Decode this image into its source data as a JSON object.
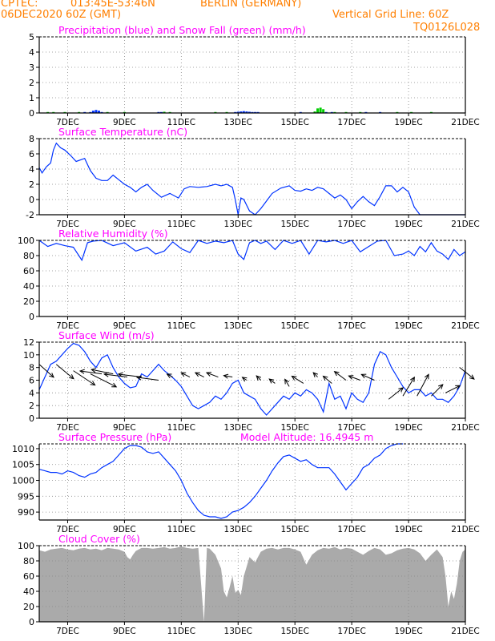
{
  "header": {
    "source": "CPTEC:",
    "coords": "013:45E-53:46N",
    "location": "BERLIN (GERMANY)",
    "run": "06DEC2020 60Z (GMT)",
    "grid_note": "Vertical Grid Line: 60Z",
    "code": "TQ0126L028"
  },
  "colors": {
    "title": "#ff00ff",
    "header": "#ff7f00",
    "line": "#0033ff",
    "snow": "#00cc00",
    "cloud": "#aaaaaa",
    "wind": "#000000"
  },
  "x_ticks": [
    "7DEC",
    "9DEC",
    "11DEC",
    "13DEC",
    "15DEC",
    "17DEC",
    "19DEC",
    "21DEC"
  ],
  "x_range": [
    0,
    15.0
  ],
  "chart_data": [
    {
      "type": "bar",
      "title": "Precipitation (blue) and Snow Fall (green) (mm/h)",
      "ylim": [
        0,
        5
      ],
      "yticks": [
        0,
        1,
        2,
        3,
        4,
        5
      ],
      "series": [
        {
          "name": "Precipitation",
          "t": [
            1.6,
            1.8,
            1.9,
            2.0,
            2.1,
            2.2,
            4.2,
            4.3,
            6.9,
            7.0,
            7.1,
            7.2,
            7.3,
            7.4,
            7.5,
            7.6,
            7.7,
            9.2,
            10.1,
            10.3,
            11.5,
            12.0
          ],
          "values": [
            0.02,
            0.05,
            0.15,
            0.2,
            0.15,
            0.05,
            0.03,
            0.02,
            0.05,
            0.08,
            0.1,
            0.12,
            0.1,
            0.08,
            0.05,
            0.04,
            0.03,
            0.03,
            0.02,
            0.02,
            0.03,
            0.02
          ]
        },
        {
          "name": "Snow Fall",
          "t": [
            0.3,
            0.5,
            0.9,
            1.4,
            2.4,
            3.0,
            4.4,
            4.6,
            6.2,
            6.6,
            9.7,
            9.8,
            9.9,
            10.0,
            10.4,
            10.8,
            11.3,
            12.6,
            13.1,
            13.8
          ],
          "values": [
            0.05,
            0.06,
            0.04,
            0.05,
            0.05,
            0.03,
            0.08,
            0.05,
            0.05,
            0.04,
            0.1,
            0.3,
            0.35,
            0.25,
            0.05,
            0.05,
            0.04,
            0.04,
            0.03,
            0.03
          ]
        }
      ]
    },
    {
      "type": "line",
      "title": "Surface Temperature (nC)",
      "ylim": [
        -2,
        8
      ],
      "yticks": [
        -2,
        0,
        2,
        4,
        6,
        8
      ],
      "series": [
        {
          "name": "Temperature",
          "t": [
            0,
            0.1,
            0.25,
            0.4,
            0.5,
            0.6,
            0.75,
            0.9,
            1.1,
            1.3,
            1.6,
            1.8,
            2.0,
            2.2,
            2.4,
            2.6,
            2.8,
            3.0,
            3.2,
            3.4,
            3.6,
            3.8,
            4.0,
            4.3,
            4.6,
            4.9,
            5.1,
            5.3,
            5.6,
            5.9,
            6.2,
            6.4,
            6.6,
            6.8,
            6.9,
            7.0,
            7.1,
            7.2,
            7.4,
            7.6,
            7.8,
            8.0,
            8.2,
            8.5,
            8.8,
            9.0,
            9.2,
            9.4,
            9.6,
            9.8,
            10.0,
            10.2,
            10.4,
            10.6,
            10.8,
            11.0,
            11.2,
            11.4,
            11.6,
            11.8,
            12.0,
            12.2,
            12.4,
            12.6,
            12.8,
            13.0,
            13.2,
            13.4,
            13.5,
            13.7,
            13.9,
            14.1,
            14.3,
            14.5,
            14.7,
            14.8,
            14.9,
            15.0
          ],
          "values": [
            4.2,
            3.5,
            4.3,
            4.8,
            6.5,
            7.4,
            6.8,
            6.5,
            5.8,
            5.0,
            5.4,
            3.8,
            2.8,
            2.5,
            2.5,
            3.2,
            2.6,
            2.0,
            1.6,
            1.0,
            1.6,
            2.0,
            1.2,
            0.3,
            0.8,
            0.2,
            1.4,
            1.7,
            1.6,
            1.7,
            2.0,
            1.8,
            2.0,
            1.6,
            0.0,
            -2.0,
            0.2,
            0.0,
            -1.5,
            -2.0,
            -1.2,
            -0.2,
            0.8,
            1.5,
            1.8,
            1.2,
            1.1,
            1.4,
            1.2,
            1.6,
            1.4,
            0.8,
            0.2,
            0.6,
            0.0,
            -1.2,
            -0.3,
            0.4,
            -0.3,
            -0.8,
            0.4,
            1.8,
            1.8,
            1.0,
            1.6,
            1.0,
            -1.0,
            -2.0,
            -2.5,
            -3.0,
            -3.0,
            -3.0,
            -3.0,
            -3.0,
            -3.0,
            -3.0,
            -3.0,
            -3.0
          ]
        }
      ]
    },
    {
      "type": "line",
      "title": "Relative Humidity (%)",
      "ylim": [
        0,
        100
      ],
      "yticks": [
        0,
        20,
        40,
        60,
        80,
        100
      ],
      "series": [
        {
          "name": "Humidity",
          "t": [
            0,
            0.3,
            0.6,
            0.9,
            1.2,
            1.5,
            1.7,
            1.9,
            2.2,
            2.6,
            3.0,
            3.4,
            3.8,
            4.1,
            4.4,
            4.7,
            5.0,
            5.3,
            5.6,
            5.9,
            6.2,
            6.5,
            6.8,
            7.0,
            7.2,
            7.4,
            7.6,
            7.8,
            8.0,
            8.3,
            8.6,
            8.9,
            9.2,
            9.5,
            9.8,
            10.1,
            10.4,
            10.7,
            11.0,
            11.3,
            11.6,
            11.9,
            12.2,
            12.5,
            12.8,
            13.0,
            13.2,
            13.4,
            13.6,
            13.8,
            14.0,
            14.2,
            14.4,
            14.6,
            14.8,
            15.0
          ],
          "values": [
            100,
            92,
            96,
            93,
            91,
            74,
            97,
            99,
            100,
            93,
            97,
            86,
            91,
            82,
            86,
            98,
            89,
            84,
            100,
            96,
            99,
            97,
            100,
            82,
            75,
            97,
            100,
            96,
            99,
            88,
            100,
            96,
            100,
            82,
            100,
            98,
            100,
            96,
            100,
            85,
            92,
            99,
            100,
            80,
            82,
            86,
            80,
            92,
            85,
            97,
            86,
            82,
            75,
            88,
            80,
            85
          ]
        }
      ]
    },
    {
      "type": "line",
      "title": "Surface Wind (m/s)",
      "ylim": [
        0,
        12
      ],
      "yticks": [
        0,
        2,
        4,
        6,
        8,
        10,
        12
      ],
      "series": [
        {
          "name": "Wind speed",
          "t": [
            0,
            0.2,
            0.4,
            0.6,
            0.8,
            1.0,
            1.2,
            1.4,
            1.6,
            1.8,
            2.0,
            2.2,
            2.4,
            2.6,
            2.8,
            3.0,
            3.2,
            3.4,
            3.6,
            3.8,
            4.0,
            4.2,
            4.4,
            4.6,
            4.8,
            5.0,
            5.2,
            5.4,
            5.6,
            5.8,
            6.0,
            6.2,
            6.4,
            6.6,
            6.8,
            7.0,
            7.2,
            7.4,
            7.6,
            7.8,
            8.0,
            8.2,
            8.4,
            8.6,
            8.8,
            9.0,
            9.2,
            9.4,
            9.6,
            9.8,
            10.0,
            10.2,
            10.4,
            10.6,
            10.8,
            11.0,
            11.2,
            11.4,
            11.6,
            11.8,
            12.0,
            12.2,
            12.4,
            12.6,
            12.8,
            13.0,
            13.2,
            13.4,
            13.6,
            13.8,
            14.0,
            14.2,
            14.4,
            14.6,
            14.8,
            15.0
          ],
          "values": [
            4.5,
            6.5,
            8.5,
            9.0,
            10.0,
            11.0,
            11.8,
            11.5,
            10.5,
            9.0,
            8.0,
            9.5,
            10.0,
            8.0,
            6.5,
            5.5,
            4.8,
            5.0,
            7.0,
            6.5,
            7.5,
            8.5,
            7.5,
            6.8,
            6.0,
            5.0,
            3.5,
            2.0,
            1.5,
            2.0,
            2.5,
            3.5,
            3.0,
            4.0,
            5.5,
            6.0,
            4.0,
            3.5,
            3.0,
            1.5,
            0.5,
            1.5,
            2.5,
            3.5,
            3.0,
            4.0,
            3.5,
            4.5,
            4.0,
            3.0,
            1.0,
            5.5,
            3.0,
            3.5,
            1.5,
            4.0,
            3.0,
            2.5,
            4.0,
            8.5,
            10.5,
            10.0,
            8.0,
            6.5,
            5.0,
            4.0,
            4.5,
            4.5,
            3.5,
            4.0,
            3.0,
            3.0,
            2.5,
            3.5,
            5.0,
            7.5
          ]
        }
      ],
      "arrows": {
        "t": [
          0.0,
          0.6,
          1.2,
          1.8,
          2.2,
          2.6,
          3.1,
          3.6,
          4.2,
          4.7,
          5.3,
          5.8,
          6.3,
          6.8,
          7.3,
          7.8,
          8.3,
          8.8,
          9.3,
          9.8,
          10.3,
          10.8,
          11.3,
          11.8,
          12.3,
          12.8,
          13.3,
          13.8,
          14.3,
          14.8
        ],
        "y": [
          8.5,
          8.5,
          7.5,
          7.0,
          7.0,
          7.0,
          6.5,
          6.5,
          6.0,
          6.5,
          6.5,
          6.5,
          6.5,
          6.5,
          6.0,
          6.0,
          5.5,
          5.0,
          5.5,
          6.5,
          5.5,
          6.0,
          6.0,
          6.0,
          3.0,
          3.5,
          3.5,
          3.5,
          4.0,
          8.0
        ],
        "u": [
          1.0,
          1.2,
          1.5,
          1.8,
          -1.5,
          -1.5,
          -1.6,
          -1.6,
          -1.5,
          -0.4,
          -0.6,
          -0.6,
          -0.8,
          -0.6,
          -0.3,
          -0.3,
          -0.4,
          -0.3,
          -0.8,
          -0.3,
          -0.6,
          -0.8,
          -0.8,
          -0.9,
          1.0,
          0.8,
          0.8,
          0.8,
          1.0,
          1.0
        ],
        "v": [
          -0.9,
          -1.0,
          -1.0,
          -0.9,
          0.2,
          0.3,
          0.2,
          0.2,
          0.2,
          0.2,
          0.3,
          0.3,
          0.3,
          0.1,
          0.2,
          0.3,
          0.3,
          0.5,
          0.5,
          0.3,
          0.5,
          0.6,
          0.3,
          0.4,
          0.8,
          1.3,
          1.5,
          0.8,
          0.5,
          -0.8
        ]
      }
    },
    {
      "type": "line",
      "title": "Surface Pressure (hPa)",
      "annotation": "Model Altitude: 16.4945 m",
      "ylim": [
        987.5,
        1011.5
      ],
      "yticks": [
        990,
        995,
        1000,
        1005,
        1010
      ],
      "series": [
        {
          "name": "Pressure",
          "t": [
            0,
            0.2,
            0.4,
            0.6,
            0.8,
            1.0,
            1.2,
            1.4,
            1.6,
            1.8,
            2.0,
            2.2,
            2.4,
            2.6,
            2.8,
            3.0,
            3.2,
            3.4,
            3.6,
            3.8,
            4.0,
            4.2,
            4.4,
            4.6,
            4.8,
            5.0,
            5.2,
            5.4,
            5.6,
            5.8,
            6.0,
            6.2,
            6.4,
            6.6,
            6.8,
            7.0,
            7.2,
            7.4,
            7.6,
            7.8,
            8.0,
            8.2,
            8.4,
            8.6,
            8.8,
            9.0,
            9.2,
            9.4,
            9.6,
            9.8,
            10.0,
            10.2,
            10.4,
            10.6,
            10.8,
            11.0,
            11.2,
            11.4,
            11.6,
            11.8,
            12.0,
            12.2,
            12.4,
            12.6,
            12.8
          ],
          "values": [
            1003.5,
            1003.0,
            1002.5,
            1002.5,
            1002.0,
            1003.0,
            1002.5,
            1001.5,
            1001.0,
            1002.0,
            1002.5,
            1004.0,
            1005.0,
            1006.0,
            1008.0,
            1010.0,
            1011.0,
            1011.0,
            1010.5,
            1009.0,
            1008.5,
            1009.0,
            1007.0,
            1005.0,
            1003.0,
            1000.0,
            996.0,
            993.0,
            990.5,
            989.0,
            988.5,
            988.5,
            988.0,
            988.5,
            990.0,
            990.5,
            991.5,
            993.0,
            995.0,
            997.5,
            1000.0,
            1003.0,
            1005.5,
            1007.5,
            1008.0,
            1007.0,
            1006.0,
            1006.5,
            1005.0,
            1004.0,
            1004.0,
            1004.0,
            1002.0,
            999.5,
            997.0,
            999.0,
            1001.0,
            1004.0,
            1005.0,
            1007.0,
            1008.0,
            1010.0,
            1011.0,
            1012.0,
            1012.0
          ]
        }
      ]
    },
    {
      "type": "area",
      "title": "Cloud Cover (%)",
      "ylim": [
        0,
        100
      ],
      "yticks": [
        0,
        20,
        40,
        60,
        80,
        100
      ],
      "series": [
        {
          "name": "Cloud cover",
          "t": [
            0,
            0.2,
            0.4,
            0.6,
            0.8,
            1.0,
            1.2,
            1.4,
            1.6,
            1.8,
            2.0,
            2.2,
            2.4,
            2.6,
            2.8,
            3.0,
            3.1,
            3.2,
            3.3,
            3.4,
            3.5,
            3.6,
            3.8,
            4.0,
            4.2,
            4.4,
            4.6,
            4.8,
            5.0,
            5.2,
            5.4,
            5.6,
            5.8,
            5.9,
            6.0,
            6.2,
            6.4,
            6.5,
            6.6,
            6.7,
            6.8,
            6.9,
            7.0,
            7.1,
            7.2,
            7.4,
            7.6,
            7.8,
            8.0,
            8.2,
            8.4,
            8.6,
            8.8,
            9.0,
            9.2,
            9.4,
            9.6,
            9.8,
            10.0,
            10.2,
            10.4,
            10.6,
            10.8,
            11.0,
            11.2,
            11.4,
            11.6,
            11.8,
            12.0,
            12.2,
            12.4,
            12.6,
            12.8,
            13.0,
            13.2,
            13.4,
            13.6,
            13.8,
            14.0,
            14.2,
            14.3,
            14.4,
            14.5,
            14.6,
            14.7,
            14.8,
            14.9,
            15.0
          ],
          "values": [
            94,
            92,
            95,
            96,
            97,
            95,
            94,
            96,
            97,
            95,
            96,
            94,
            97,
            96,
            95,
            92,
            85,
            82,
            88,
            93,
            95,
            97,
            97,
            96,
            97,
            98,
            96,
            97,
            99,
            97,
            96,
            97,
            0,
            97,
            96,
            88,
            70,
            40,
            32,
            45,
            60,
            38,
            42,
            35,
            60,
            85,
            78,
            92,
            96,
            97,
            95,
            97,
            97,
            95,
            92,
            75,
            88,
            94,
            97,
            96,
            98,
            95,
            97,
            96,
            92,
            88,
            93,
            97,
            95,
            88,
            90,
            94,
            96,
            97,
            95,
            90,
            80,
            88,
            95,
            85,
            60,
            20,
            40,
            30,
            50,
            80,
            92,
            95
          ]
        }
      ]
    }
  ]
}
